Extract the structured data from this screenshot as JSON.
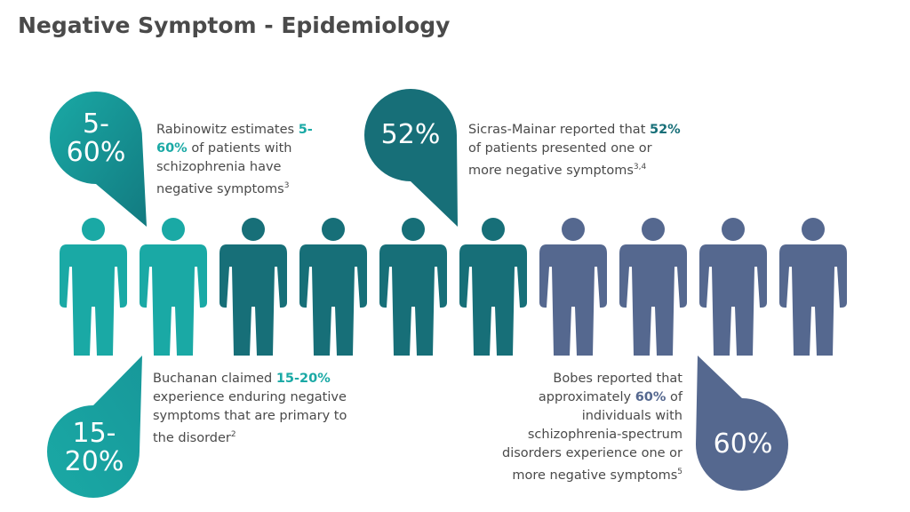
{
  "title": "Negative Symptom - Epidemiology",
  "callouts": [
    {
      "badge": [
        "5-",
        "60%"
      ],
      "color": "#1aa9a5",
      "text": [
        {
          "t": "Rabinowitz estimates "
        },
        {
          "t": "5-60%",
          "bold": true
        },
        {
          "t": " of patients with schizophrenia have negative symptoms"
        }
      ],
      "ref": "3"
    },
    {
      "badge": [
        "52%"
      ],
      "color": "#176f78",
      "text": [
        {
          "t": "Sicras-Mainar reported that "
        },
        {
          "t": "52%",
          "bold": true
        },
        {
          "t": " of patients presented one or more negative symptoms"
        }
      ],
      "ref": "3,4"
    },
    {
      "badge": [
        "15-",
        "20%"
      ],
      "color": "#1aa9a5",
      "text": [
        {
          "t": "Buchanan claimed "
        },
        {
          "t": "15-20%",
          "bold": true
        },
        {
          "t": " experience enduring negative symptoms that are primary to the disorder"
        }
      ],
      "ref": "2"
    },
    {
      "badge": [
        "60%"
      ],
      "color": "#55688f",
      "text": [
        {
          "t": "Bobes reported that approximately "
        },
        {
          "t": "60%",
          "bold": true
        },
        {
          "t": " of individuals with schizophrenia-spectrum disorders experience one or more negative symptoms"
        }
      ],
      "ref": "5"
    }
  ]
}
